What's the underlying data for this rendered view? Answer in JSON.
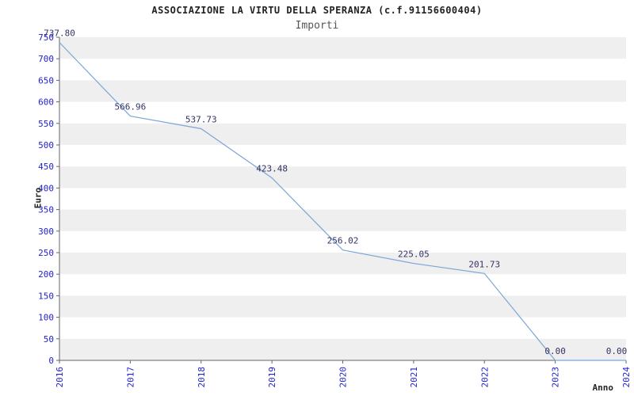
{
  "chart_data": {
    "type": "line",
    "title": "ASSOCIAZIONE LA VIRTU DELLA SPERANZA (c.f.91156600404)",
    "subtitle": "Importi",
    "xlabel": "Anno",
    "ylabel": "Euro",
    "categories": [
      "2016",
      "2017",
      "2018",
      "2019",
      "2020",
      "2021",
      "2022",
      "2023",
      "2024"
    ],
    "series": [
      {
        "name": "Importi",
        "values": [
          737.8,
          566.96,
          537.73,
          423.48,
          256.02,
          225.05,
          201.73,
          0.0,
          0.0
        ]
      }
    ],
    "value_labels": [
      "737.80",
      "566.96",
      "537.73",
      "423.48",
      "256.02",
      "225.05",
      "201.73",
      "0.00",
      "0.00"
    ],
    "ylim": [
      0,
      750
    ],
    "ytick_step": 50,
    "grid": "alternating-horizontal-bands",
    "legend": "none",
    "colors": {
      "line": "#7aa6d8",
      "tick_label": "#2222cc",
      "value_label": "#333366",
      "band": "#efefef",
      "axis": "#666666"
    }
  }
}
